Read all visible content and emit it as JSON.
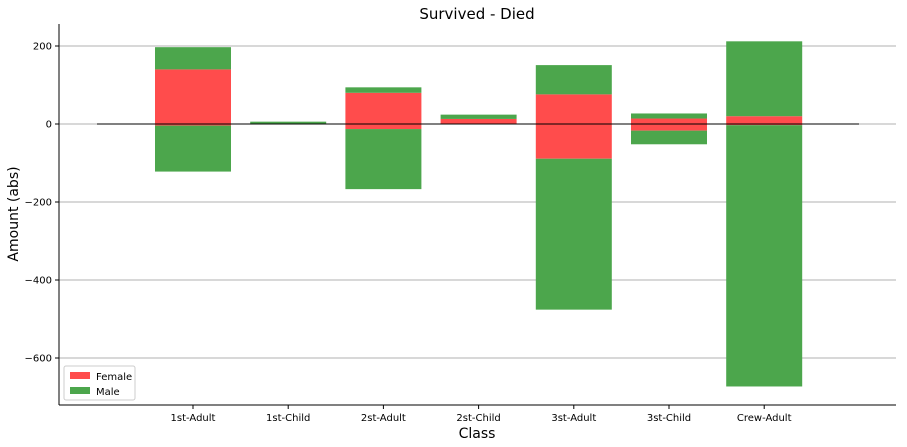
{
  "chart_data": {
    "type": "bar",
    "stacked": true,
    "title": "Survived - Died",
    "xlabel": "Class",
    "ylabel": "Amount  (abs)",
    "categories": [
      "1st-Adult",
      "1st-Child",
      "2st-Adult",
      "2st-Child",
      "3st-Adult",
      "3st-Child",
      "Crew-Adult"
    ],
    "ylim": [
      -715,
      255
    ],
    "yticks": [
      200,
      0,
      -200,
      -400,
      -600
    ],
    "ytick_labels": [
      "200",
      "0",
      "−200",
      "−400",
      "−600"
    ],
    "grid": "horizontal",
    "legend_position": "lower-left",
    "series": [
      {
        "name": "Female",
        "color": "#ff4c4c",
        "survived": [
          140,
          1,
          80,
          13,
          76,
          14,
          20
        ],
        "died": [
          4,
          0,
          13,
          0,
          89,
          17,
          3
        ]
      },
      {
        "name": "Male",
        "color": "#4ca64c",
        "survived": [
          57,
          5,
          14,
          11,
          75,
          13,
          192
        ],
        "died": [
          118,
          0,
          154,
          0,
          387,
          35,
          670
        ]
      }
    ]
  }
}
